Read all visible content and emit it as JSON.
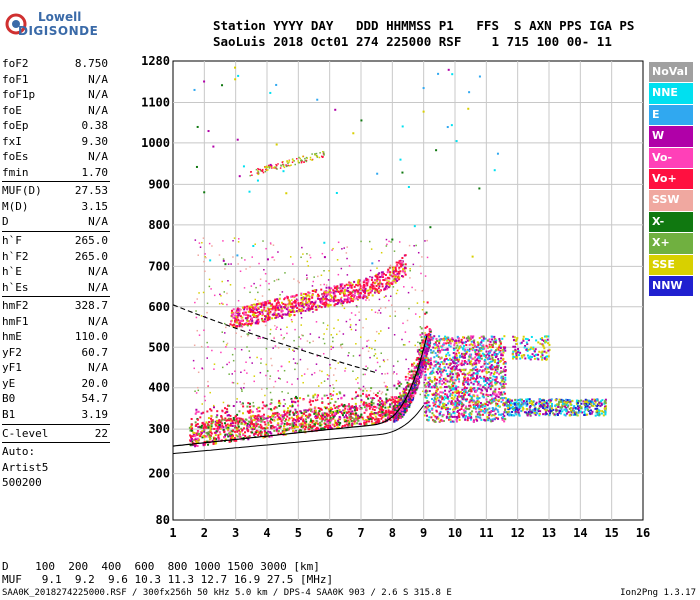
{
  "logo": {
    "line1": "Lowell",
    "line2": "DIGISONDE"
  },
  "header": {
    "line1": "Station YYYY DAY   DDD HHMMSS P1   FFS  S AXN PPS IGA PS",
    "line2": "SaoLuis 2018 Oct01 274 225000 RSF    1 715 100 00- 11"
  },
  "params": [
    {
      "label": "foF2",
      "value": "8.750"
    },
    {
      "label": "foF1",
      "value": "N/A"
    },
    {
      "label": "foF1p",
      "value": "N/A"
    },
    {
      "label": "foE",
      "value": "N/A"
    },
    {
      "label": "foEp",
      "value": "0.38"
    },
    {
      "label": "fxI",
      "value": "9.30"
    },
    {
      "label": "foEs",
      "value": "N/A"
    },
    {
      "label": "fmin",
      "value": "1.70"
    },
    {
      "sep": true
    },
    {
      "label": "MUF(D)",
      "value": "27.53"
    },
    {
      "label": "M(D)",
      "value": "3.15"
    },
    {
      "label": "D",
      "value": "N/A"
    },
    {
      "sep": true
    },
    {
      "label": "h`F",
      "value": "265.0"
    },
    {
      "label": "h`F2",
      "value": "265.0"
    },
    {
      "label": "h`E",
      "value": "N/A"
    },
    {
      "label": "h`Es",
      "value": "N/A"
    },
    {
      "sep": true
    },
    {
      "label": "hmF2",
      "value": "328.7"
    },
    {
      "label": "hmF1",
      "value": "N/A"
    },
    {
      "label": "hmE",
      "value": "110.0"
    },
    {
      "label": "yF2",
      "value": "60.7"
    },
    {
      "label": "yF1",
      "value": "N/A"
    },
    {
      "label": "yE",
      "value": "20.0"
    },
    {
      "label": "B0",
      "value": "54.7"
    },
    {
      "label": "B1",
      "value": "3.19"
    },
    {
      "sep": true
    },
    {
      "label": "C-level",
      "value": "22"
    },
    {
      "sep": true
    },
    {
      "label": "Auto:",
      "value": ""
    },
    {
      "label": "Artist5",
      "value": ""
    },
    {
      "label": "500200",
      "value": ""
    }
  ],
  "legend": [
    {
      "label": "NoVal",
      "color": "#a0a0a0"
    },
    {
      "label": "NNE",
      "color": "#00e0f0"
    },
    {
      "label": "E",
      "color": "#30a8f0"
    },
    {
      "label": "W",
      "color": "#b000a8"
    },
    {
      "label": "Vo-",
      "color": "#ff40b8"
    },
    {
      "label": "Vo+",
      "color": "#ff1040"
    },
    {
      "label": "SSW",
      "color": "#f0a8a0"
    },
    {
      "label": "X-",
      "color": "#107810"
    },
    {
      "label": "X+",
      "color": "#70b040"
    },
    {
      "label": "SSE",
      "color": "#d8d000"
    },
    {
      "label": "NNW",
      "color": "#2020d0"
    }
  ],
  "chart_data": {
    "type": "scatter",
    "xticks": [
      "1",
      "2",
      "3",
      "4",
      "5",
      "6",
      "7",
      "8",
      "9",
      "10",
      "11",
      "12",
      "13",
      "14",
      "15",
      "16"
    ],
    "yticks": [
      "80",
      "200",
      "300",
      "400",
      "500",
      "600",
      "700",
      "800",
      "900",
      "1000",
      "1100",
      "1280"
    ],
    "xlim": [
      1,
      16
    ],
    "grid": true
  },
  "bottom": {
    "line1": "D    100  200  400  600  800 1000 1500 3000 [km]",
    "line2": "MUF   9.1  9.2  9.6 10.3 11.3 12.7 16.9 27.5 [MHz]"
  },
  "footer": "SAA0K_2018274225000.RSF / 300fx256h 50 kHz 5.0 km / DPS-4 SAA0K 903 / 2.6 S 315.8 E",
  "version": "Ion2Png 1.3.17"
}
